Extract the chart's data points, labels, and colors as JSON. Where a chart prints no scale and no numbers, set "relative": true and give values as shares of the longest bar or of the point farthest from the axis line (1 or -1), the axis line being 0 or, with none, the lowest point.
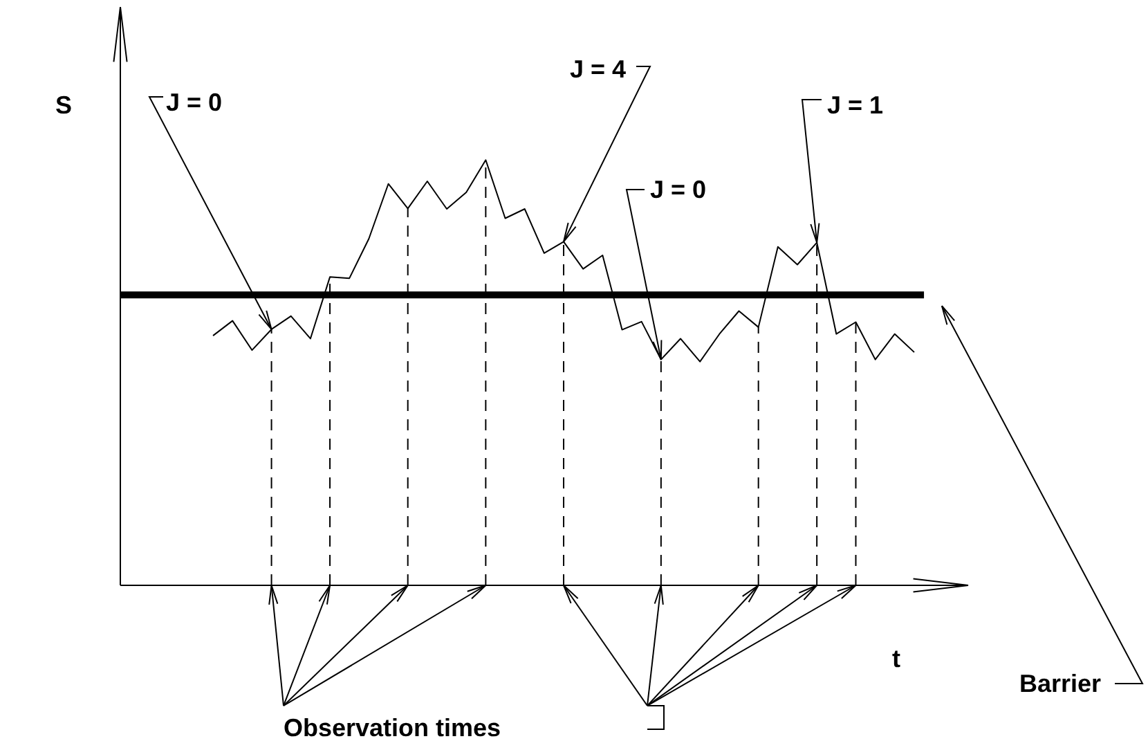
{
  "chart_data": {
    "type": "line",
    "relative": true,
    "xlabel": "t",
    "categories": [
      null,
      null,
      null,
      null,
      null,
      null,
      null,
      null,
      null,
      null,
      null,
      null,
      null,
      null,
      null,
      null,
      null,
      null,
      null,
      null,
      null,
      null,
      null,
      null,
      null,
      null,
      null,
      null,
      null,
      null,
      null,
      null,
      null,
      null,
      null,
      null,
      null
    ],
    "series": [
      {
        "color": "#000000",
        "values": [
          0.587,
          0.622,
          0.553,
          0.602,
          0.633,
          0.58,
          0.725,
          0.722,
          0.815,
          0.944,
          0.886,
          0.95,
          0.885,
          0.924,
          1,
          0.863,
          0.885,
          0.781,
          0.808,
          0.744,
          0.776,
          0.601,
          0.62,
          0.531,
          0.58,
          0.526,
          0.591,
          0.645,
          0.607,
          0.796,
          0.754,
          0.806,
          0.591,
          0.619,
          0.531,
          0.591,
          0.548
        ]
      }
    ],
    "ref_lines": [
      {
        "axis": "y",
        "value": 0.683,
        "label": "Barrier",
        "color": "#000000"
      }
    ],
    "annotations": [
      "S",
      "J = 0",
      "J = 4",
      "J = 0",
      "J = 1",
      "Observation times"
    ],
    "grid": "x",
    "marker": "none",
    "line_style": "solid"
  }
}
